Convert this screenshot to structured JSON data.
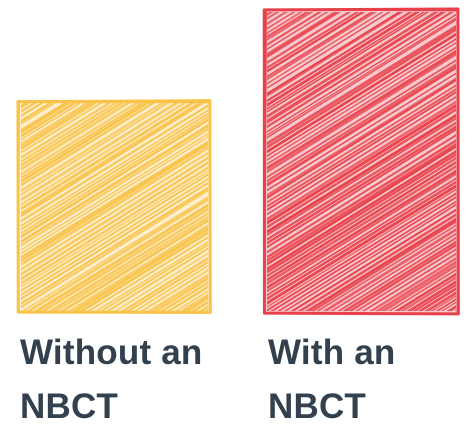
{
  "chart_data": {
    "type": "bar",
    "title": "",
    "xlabel": "",
    "ylabel": "",
    "categories": [
      {
        "line1": "Without an",
        "line2": "NBCT"
      },
      {
        "line1": "With an",
        "line2": "NBCT"
      }
    ],
    "values": [
      0.7,
      1.0
    ],
    "ylim": [
      0,
      1
    ],
    "colors": [
      "#f9c34a",
      "#e8414b"
    ],
    "grid": false,
    "legend": "none",
    "style": "hand-drawn hatched bars"
  }
}
